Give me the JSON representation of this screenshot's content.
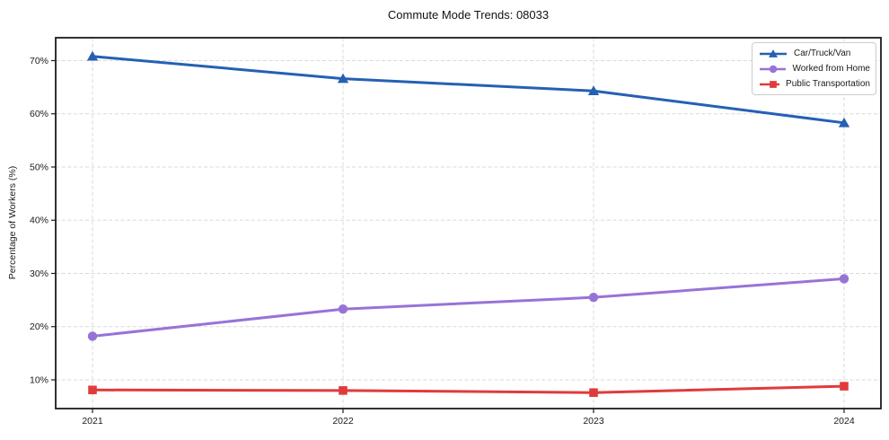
{
  "chart": {
    "title": "Commute Mode Trends: 08033",
    "ylabel": "Percentage of Workers (%)"
  },
  "chart_data": {
    "type": "line",
    "title": "Commute Mode Trends: 08033",
    "xlabel": "",
    "ylabel": "Percentage of Workers (%)",
    "x_labels": [
      "2021",
      "2022",
      "2023",
      "2024"
    ],
    "series": [
      {
        "name": "Car/Truck/Van",
        "values": [
          70.8,
          66.6,
          64.3,
          58.3
        ],
        "color": "#2560b4",
        "marker": "triangle"
      },
      {
        "name": "Worked from Home",
        "values": [
          18.2,
          23.3,
          25.5,
          29.0
        ],
        "color": "#9873d6",
        "marker": "circle"
      },
      {
        "name": "Public Transportation",
        "values": [
          8.1,
          8.0,
          7.6,
          8.8
        ],
        "color": "#e03b3b",
        "marker": "square"
      }
    ],
    "yticks": [
      10,
      20,
      30,
      40,
      50,
      60,
      70
    ],
    "ytick_labels": [
      "10%",
      "20%",
      "30%",
      "40%",
      "50%",
      "60%",
      "70%"
    ],
    "ylim": [
      4.6,
      74.3
    ],
    "grid": true,
    "grid_style": "dashed",
    "legend_position": "top-right",
    "colors": {
      "grid": "#d9d9d9",
      "spine": "#1c1c1c",
      "tick_label": "#1a1a1a",
      "background": "#ffffff"
    }
  }
}
